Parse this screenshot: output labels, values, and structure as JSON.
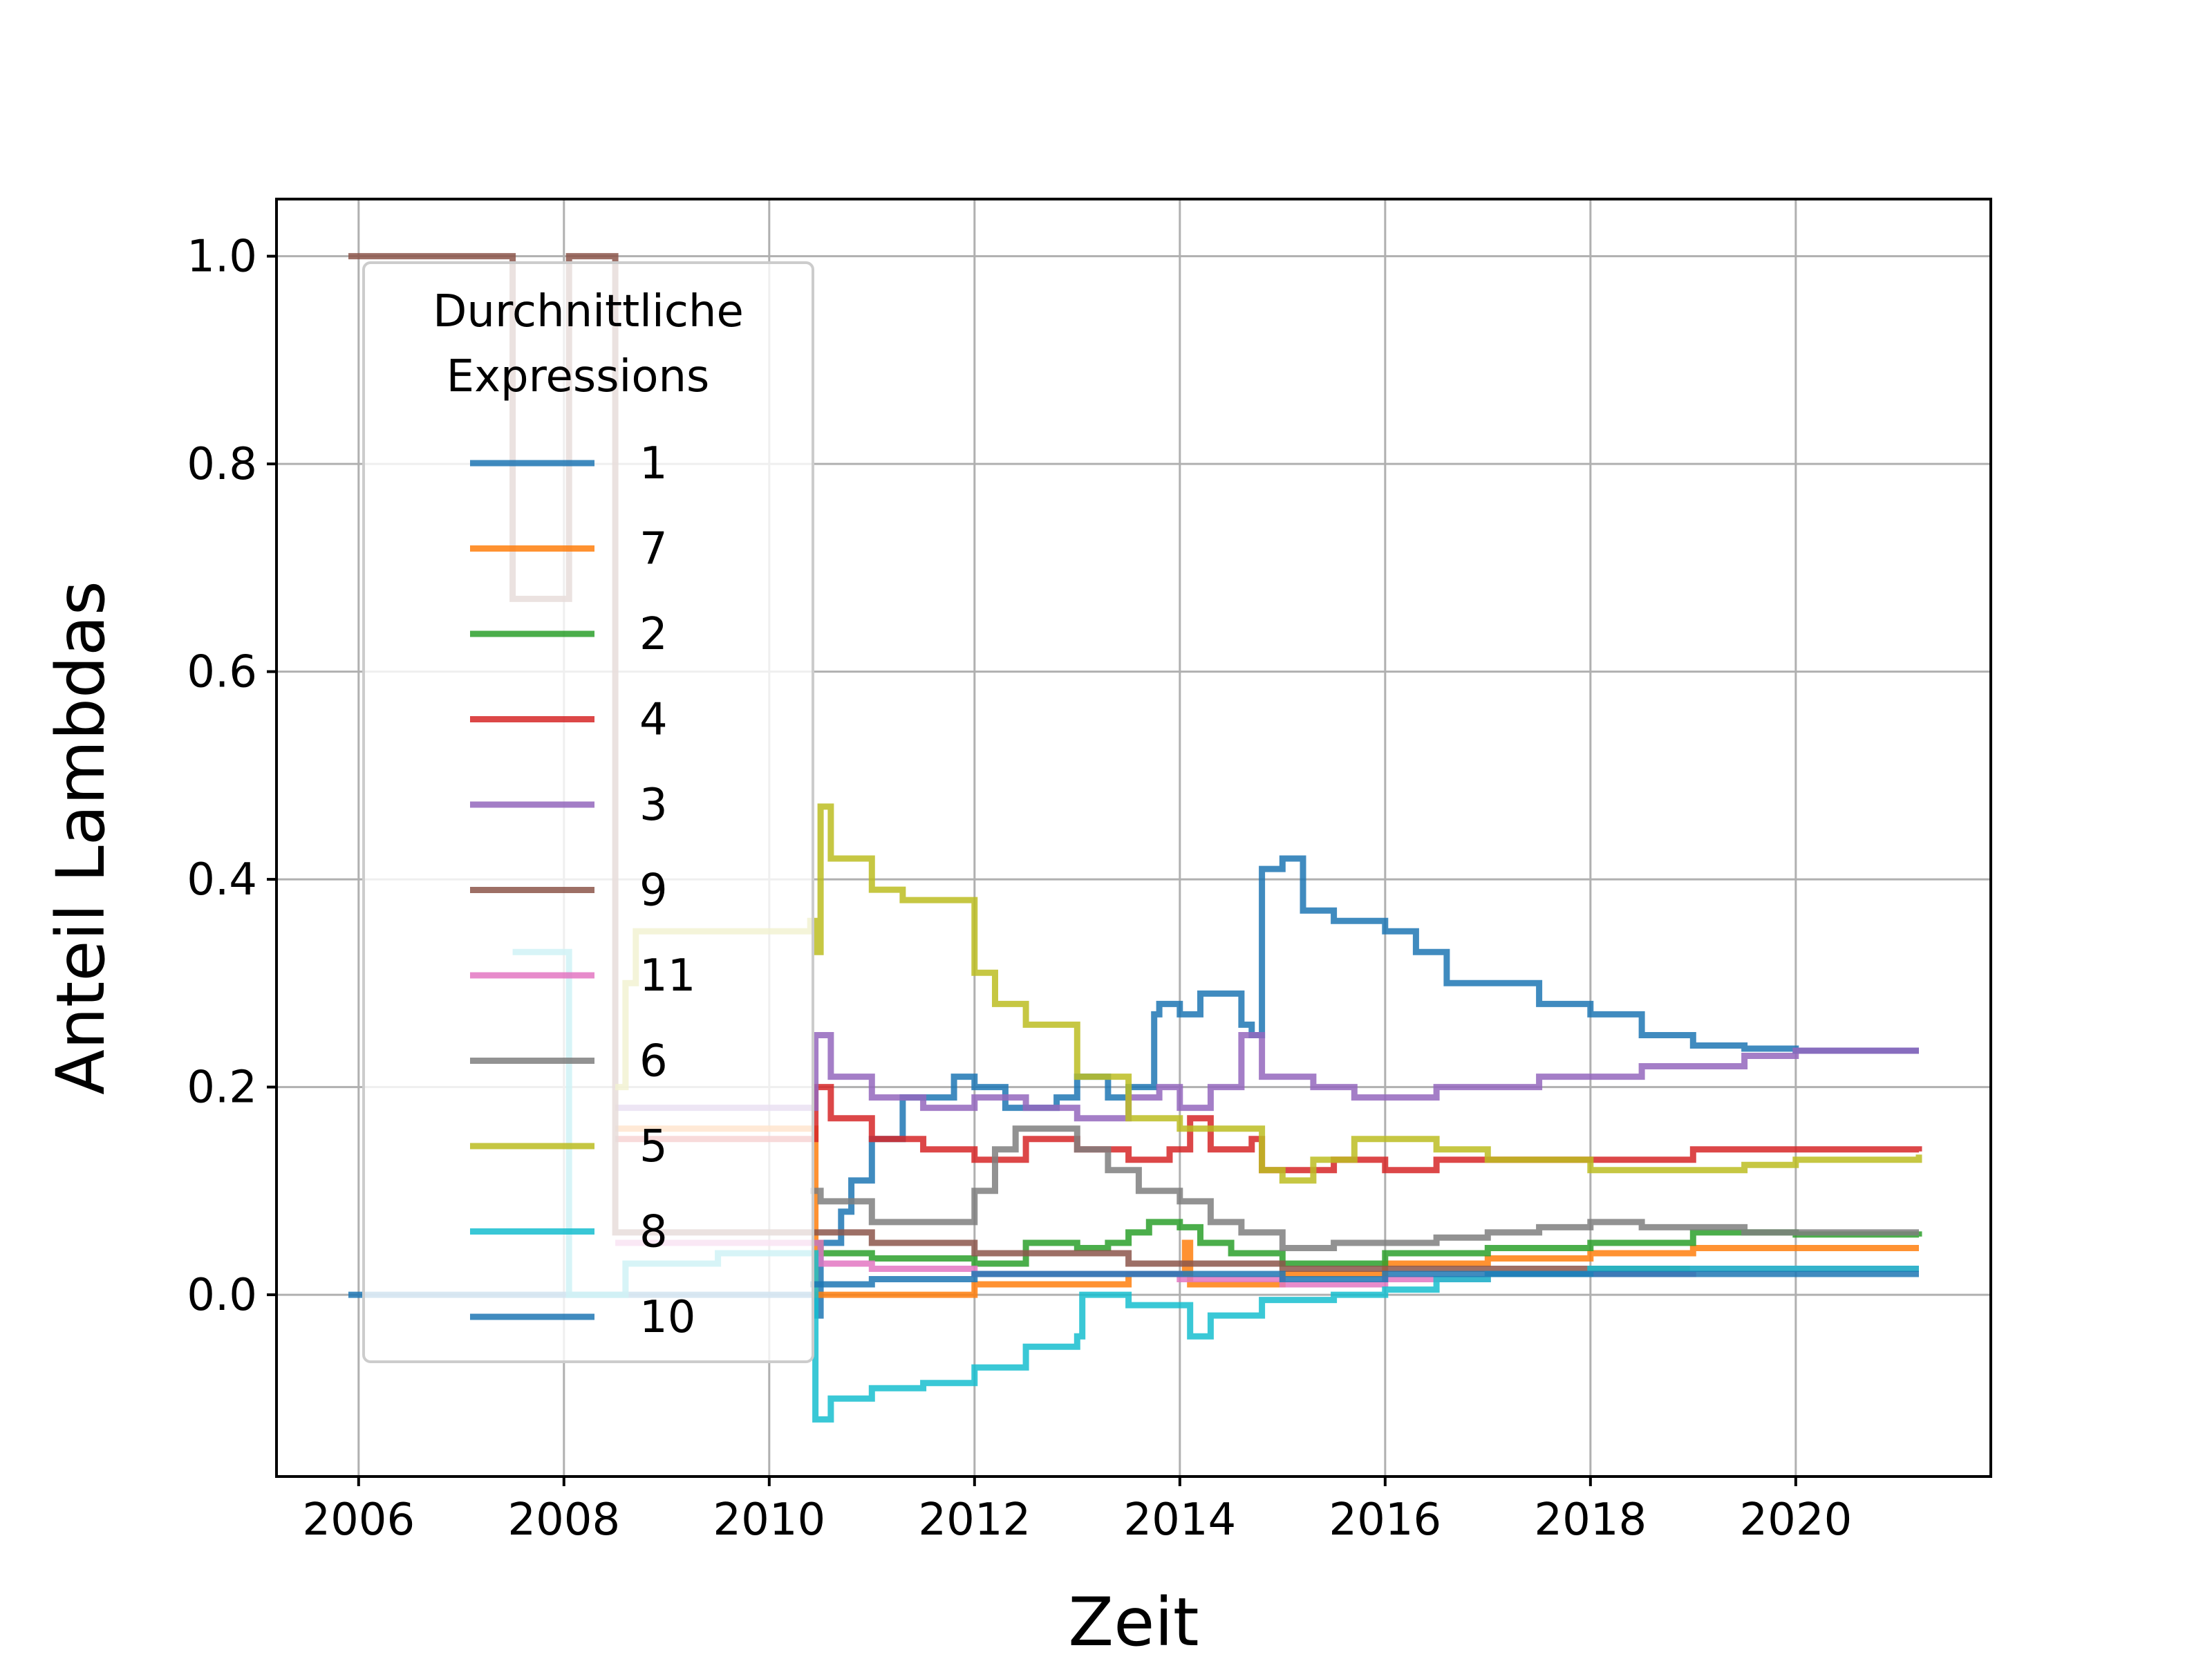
{
  "chart_data": {
    "type": "line",
    "title": "",
    "xlabel": "Zeit",
    "ylabel": "Anteil Lambdas",
    "xlim": [
      2005.2,
      2021.9
    ],
    "ylim": [
      -0.175,
      1.055
    ],
    "xticks": [
      2006,
      2008,
      2010,
      2012,
      2014,
      2016,
      2018,
      2020
    ],
    "xtick_labels": [
      "2006",
      "2008",
      "2010",
      "2012",
      "2014",
      "2016",
      "2018",
      "2020"
    ],
    "yticks": [
      0.0,
      0.2,
      0.4,
      0.6,
      0.8,
      1.0
    ],
    "ytick_labels": [
      "0.0",
      "0.2",
      "0.4",
      "0.6",
      "0.8",
      "1.0"
    ],
    "grid": true,
    "legend": {
      "title_line1": "Durchnittliche",
      "title_line2": "Expressions",
      "placement": "upper-left"
    },
    "series": [
      {
        "name": "1",
        "color": "#1f77b4",
        "points": [
          [
            2005.9,
            0.0
          ],
          [
            2010.4,
            0.0
          ],
          [
            2010.45,
            -0.02
          ],
          [
            2010.5,
            0.05
          ],
          [
            2010.7,
            0.08
          ],
          [
            2010.8,
            0.11
          ],
          [
            2011.0,
            0.15
          ],
          [
            2011.3,
            0.19
          ],
          [
            2011.7,
            0.19
          ],
          [
            2011.8,
            0.21
          ],
          [
            2012.0,
            0.2
          ],
          [
            2012.3,
            0.18
          ],
          [
            2012.8,
            0.19
          ],
          [
            2013.0,
            0.21
          ],
          [
            2013.3,
            0.19
          ],
          [
            2013.5,
            0.2
          ],
          [
            2013.75,
            0.27
          ],
          [
            2013.8,
            0.28
          ],
          [
            2014.0,
            0.27
          ],
          [
            2014.2,
            0.29
          ],
          [
            2014.5,
            0.29
          ],
          [
            2014.6,
            0.26
          ],
          [
            2014.7,
            0.25
          ],
          [
            2014.8,
            0.41
          ],
          [
            2015.0,
            0.42
          ],
          [
            2015.2,
            0.37
          ],
          [
            2015.5,
            0.36
          ],
          [
            2016.0,
            0.35
          ],
          [
            2016.3,
            0.33
          ],
          [
            2016.6,
            0.3
          ],
          [
            2017.0,
            0.3
          ],
          [
            2017.5,
            0.28
          ],
          [
            2018.0,
            0.27
          ],
          [
            2018.5,
            0.25
          ],
          [
            2019.0,
            0.24
          ],
          [
            2019.5,
            0.237
          ],
          [
            2020.0,
            0.235
          ],
          [
            2021.2,
            0.235
          ]
        ]
      },
      {
        "name": "7",
        "color": "#ff7f0e",
        "points": [
          [
            2008.5,
            0.16
          ],
          [
            2009.5,
            0.16
          ],
          [
            2010.4,
            0.16
          ],
          [
            2010.45,
            0.0
          ],
          [
            2011.0,
            0.0
          ],
          [
            2011.9,
            0.0
          ],
          [
            2012.0,
            0.01
          ],
          [
            2013.0,
            0.01
          ],
          [
            2013.5,
            0.02
          ],
          [
            2014.0,
            0.02
          ],
          [
            2014.05,
            0.05
          ],
          [
            2014.1,
            0.01
          ],
          [
            2014.5,
            0.01
          ],
          [
            2015.0,
            0.02
          ],
          [
            2015.5,
            0.02
          ],
          [
            2016.0,
            0.03
          ],
          [
            2017.0,
            0.035
          ],
          [
            2018.0,
            0.04
          ],
          [
            2019.0,
            0.045
          ],
          [
            2020.0,
            0.045
          ],
          [
            2021.2,
            0.045
          ]
        ]
      },
      {
        "name": "2",
        "color": "#2ca02c",
        "points": [
          [
            2010.4,
            0.05
          ],
          [
            2010.5,
            0.04
          ],
          [
            2011.0,
            0.035
          ],
          [
            2012.0,
            0.03
          ],
          [
            2012.5,
            0.05
          ],
          [
            2013.0,
            0.045
          ],
          [
            2013.3,
            0.05
          ],
          [
            2013.5,
            0.06
          ],
          [
            2013.7,
            0.07
          ],
          [
            2014.0,
            0.065
          ],
          [
            2014.2,
            0.05
          ],
          [
            2014.5,
            0.04
          ],
          [
            2015.0,
            0.03
          ],
          [
            2015.5,
            0.03
          ],
          [
            2016.0,
            0.04
          ],
          [
            2017.0,
            0.045
          ],
          [
            2018.0,
            0.05
          ],
          [
            2019.0,
            0.06
          ],
          [
            2020.0,
            0.058
          ],
          [
            2021.2,
            0.056
          ]
        ]
      },
      {
        "name": "4",
        "color": "#d62728",
        "points": [
          [
            2008.5,
            0.15
          ],
          [
            2009.5,
            0.15
          ],
          [
            2010.4,
            0.15
          ],
          [
            2010.45,
            0.2
          ],
          [
            2010.6,
            0.17
          ],
          [
            2011.0,
            0.15
          ],
          [
            2011.5,
            0.14
          ],
          [
            2012.0,
            0.13
          ],
          [
            2012.5,
            0.15
          ],
          [
            2013.0,
            0.14
          ],
          [
            2013.5,
            0.13
          ],
          [
            2013.9,
            0.14
          ],
          [
            2014.1,
            0.17
          ],
          [
            2014.3,
            0.14
          ],
          [
            2014.7,
            0.15
          ],
          [
            2014.8,
            0.12
          ],
          [
            2015.0,
            0.12
          ],
          [
            2015.5,
            0.13
          ],
          [
            2016.0,
            0.12
          ],
          [
            2016.5,
            0.13
          ],
          [
            2017.0,
            0.13
          ],
          [
            2018.0,
            0.13
          ],
          [
            2019.0,
            0.14
          ],
          [
            2020.0,
            0.14
          ],
          [
            2021.2,
            0.138
          ]
        ]
      },
      {
        "name": "3",
        "color": "#9467bd",
        "points": [
          [
            2008.5,
            0.18
          ],
          [
            2009.5,
            0.18
          ],
          [
            2010.4,
            0.18
          ],
          [
            2010.45,
            0.25
          ],
          [
            2010.6,
            0.21
          ],
          [
            2011.0,
            0.19
          ],
          [
            2011.5,
            0.18
          ],
          [
            2012.0,
            0.19
          ],
          [
            2012.5,
            0.18
          ],
          [
            2013.0,
            0.17
          ],
          [
            2013.5,
            0.19
          ],
          [
            2013.8,
            0.2
          ],
          [
            2014.0,
            0.18
          ],
          [
            2014.3,
            0.2
          ],
          [
            2014.6,
            0.25
          ],
          [
            2014.8,
            0.21
          ],
          [
            2015.0,
            0.21
          ],
          [
            2015.3,
            0.2
          ],
          [
            2015.7,
            0.19
          ],
          [
            2016.0,
            0.19
          ],
          [
            2016.5,
            0.2
          ],
          [
            2017.0,
            0.2
          ],
          [
            2017.5,
            0.21
          ],
          [
            2018.0,
            0.21
          ],
          [
            2018.5,
            0.22
          ],
          [
            2019.0,
            0.22
          ],
          [
            2019.5,
            0.23
          ],
          [
            2020.0,
            0.235
          ],
          [
            2021.2,
            0.235
          ]
        ]
      },
      {
        "name": "9",
        "color": "#8c564b",
        "points": [
          [
            2005.9,
            1.0
          ],
          [
            2007.5,
            1.0
          ],
          [
            2007.5,
            0.67
          ],
          [
            2008.05,
            0.67
          ],
          [
            2008.05,
            1.0
          ],
          [
            2008.5,
            1.0
          ],
          [
            2008.5,
            0.06
          ],
          [
            2009.5,
            0.06
          ],
          [
            2010.4,
            0.06
          ],
          [
            2010.5,
            0.06
          ],
          [
            2011.0,
            0.05
          ],
          [
            2012.0,
            0.04
          ],
          [
            2013.0,
            0.04
          ],
          [
            2013.5,
            0.03
          ],
          [
            2014.0,
            0.03
          ],
          [
            2015.0,
            0.025
          ],
          [
            2016.0,
            0.025
          ],
          [
            2017.0,
            0.025
          ],
          [
            2018.0,
            0.025
          ],
          [
            2019.0,
            0.025
          ],
          [
            2020.0,
            0.025
          ],
          [
            2021.2,
            0.025
          ]
        ]
      },
      {
        "name": "11",
        "color": "#e377c2",
        "points": [
          [
            2008.5,
            0.05
          ],
          [
            2009.5,
            0.05
          ],
          [
            2010.4,
            0.05
          ],
          [
            2010.5,
            0.03
          ],
          [
            2011.0,
            0.025
          ],
          [
            2012.0,
            0.02
          ],
          [
            2013.0,
            0.02
          ],
          [
            2014.0,
            0.015
          ],
          [
            2015.0,
            0.01
          ],
          [
            2016.0,
            0.015
          ],
          [
            2017.0,
            0.02
          ],
          [
            2018.0,
            0.02
          ],
          [
            2019.0,
            0.025
          ],
          [
            2020.0,
            0.025
          ],
          [
            2021.2,
            0.025
          ]
        ]
      },
      {
        "name": "6",
        "color": "#7f7f7f",
        "points": [
          [
            2010.4,
            0.1
          ],
          [
            2010.5,
            0.09
          ],
          [
            2011.0,
            0.07
          ],
          [
            2011.9,
            0.07
          ],
          [
            2012.0,
            0.1
          ],
          [
            2012.2,
            0.14
          ],
          [
            2012.4,
            0.16
          ],
          [
            2012.8,
            0.16
          ],
          [
            2013.0,
            0.14
          ],
          [
            2013.3,
            0.12
          ],
          [
            2013.6,
            0.1
          ],
          [
            2014.0,
            0.09
          ],
          [
            2014.3,
            0.07
          ],
          [
            2014.6,
            0.06
          ],
          [
            2015.0,
            0.045
          ],
          [
            2015.5,
            0.05
          ],
          [
            2016.0,
            0.05
          ],
          [
            2016.5,
            0.055
          ],
          [
            2017.0,
            0.06
          ],
          [
            2017.5,
            0.065
          ],
          [
            2018.0,
            0.07
          ],
          [
            2018.5,
            0.065
          ],
          [
            2019.0,
            0.065
          ],
          [
            2019.5,
            0.06
          ],
          [
            2020.0,
            0.06
          ],
          [
            2021.2,
            0.06
          ]
        ]
      },
      {
        "name": "5",
        "color": "#bcbd22",
        "points": [
          [
            2008.5,
            0.2
          ],
          [
            2008.6,
            0.3
          ],
          [
            2008.7,
            0.35
          ],
          [
            2009.5,
            0.35
          ],
          [
            2010.4,
            0.36
          ],
          [
            2010.45,
            0.33
          ],
          [
            2010.5,
            0.47
          ],
          [
            2010.6,
            0.42
          ],
          [
            2011.0,
            0.39
          ],
          [
            2011.3,
            0.38
          ],
          [
            2011.8,
            0.38
          ],
          [
            2012.0,
            0.31
          ],
          [
            2012.2,
            0.28
          ],
          [
            2012.5,
            0.26
          ],
          [
            2013.0,
            0.21
          ],
          [
            2013.5,
            0.17
          ],
          [
            2014.0,
            0.16
          ],
          [
            2014.5,
            0.16
          ],
          [
            2014.8,
            0.12
          ],
          [
            2015.0,
            0.11
          ],
          [
            2015.3,
            0.13
          ],
          [
            2015.7,
            0.15
          ],
          [
            2016.0,
            0.15
          ],
          [
            2016.5,
            0.14
          ],
          [
            2017.0,
            0.13
          ],
          [
            2017.5,
            0.13
          ],
          [
            2018.0,
            0.12
          ],
          [
            2018.5,
            0.12
          ],
          [
            2019.0,
            0.12
          ],
          [
            2019.5,
            0.125
          ],
          [
            2020.0,
            0.13
          ],
          [
            2021.2,
            0.135
          ]
        ]
      },
      {
        "name": "8",
        "color": "#17becf",
        "points": [
          [
            2007.5,
            0.33
          ],
          [
            2008.0,
            0.33
          ],
          [
            2008.05,
            0.0
          ],
          [
            2008.5,
            0.0
          ],
          [
            2008.6,
            0.03
          ],
          [
            2009.5,
            0.04
          ],
          [
            2010.4,
            0.04
          ],
          [
            2010.45,
            -0.12
          ],
          [
            2010.6,
            -0.1
          ],
          [
            2011.0,
            -0.09
          ],
          [
            2011.5,
            -0.085
          ],
          [
            2012.0,
            -0.07
          ],
          [
            2012.5,
            -0.05
          ],
          [
            2013.0,
            -0.04
          ],
          [
            2013.05,
            0.0
          ],
          [
            2013.5,
            -0.01
          ],
          [
            2014.0,
            -0.01
          ],
          [
            2014.1,
            -0.04
          ],
          [
            2014.3,
            -0.02
          ],
          [
            2014.8,
            -0.005
          ],
          [
            2015.5,
            0.0
          ],
          [
            2016.0,
            0.005
          ],
          [
            2016.5,
            0.015
          ],
          [
            2017.0,
            0.02
          ],
          [
            2018.0,
            0.025
          ],
          [
            2019.0,
            0.025
          ],
          [
            2020.0,
            0.025
          ],
          [
            2021.2,
            0.025
          ]
        ]
      },
      {
        "name": "10",
        "color": "#1f77b4",
        "points": [
          [
            2010.4,
            0.01
          ],
          [
            2011.0,
            0.015
          ],
          [
            2012.0,
            0.02
          ],
          [
            2013.0,
            0.02
          ],
          [
            2014.0,
            0.02
          ],
          [
            2015.0,
            0.015
          ],
          [
            2016.0,
            0.02
          ],
          [
            2017.0,
            0.02
          ],
          [
            2018.0,
            0.02
          ],
          [
            2019.0,
            0.02
          ],
          [
            2020.0,
            0.02
          ],
          [
            2021.2,
            0.02
          ]
        ]
      }
    ]
  }
}
